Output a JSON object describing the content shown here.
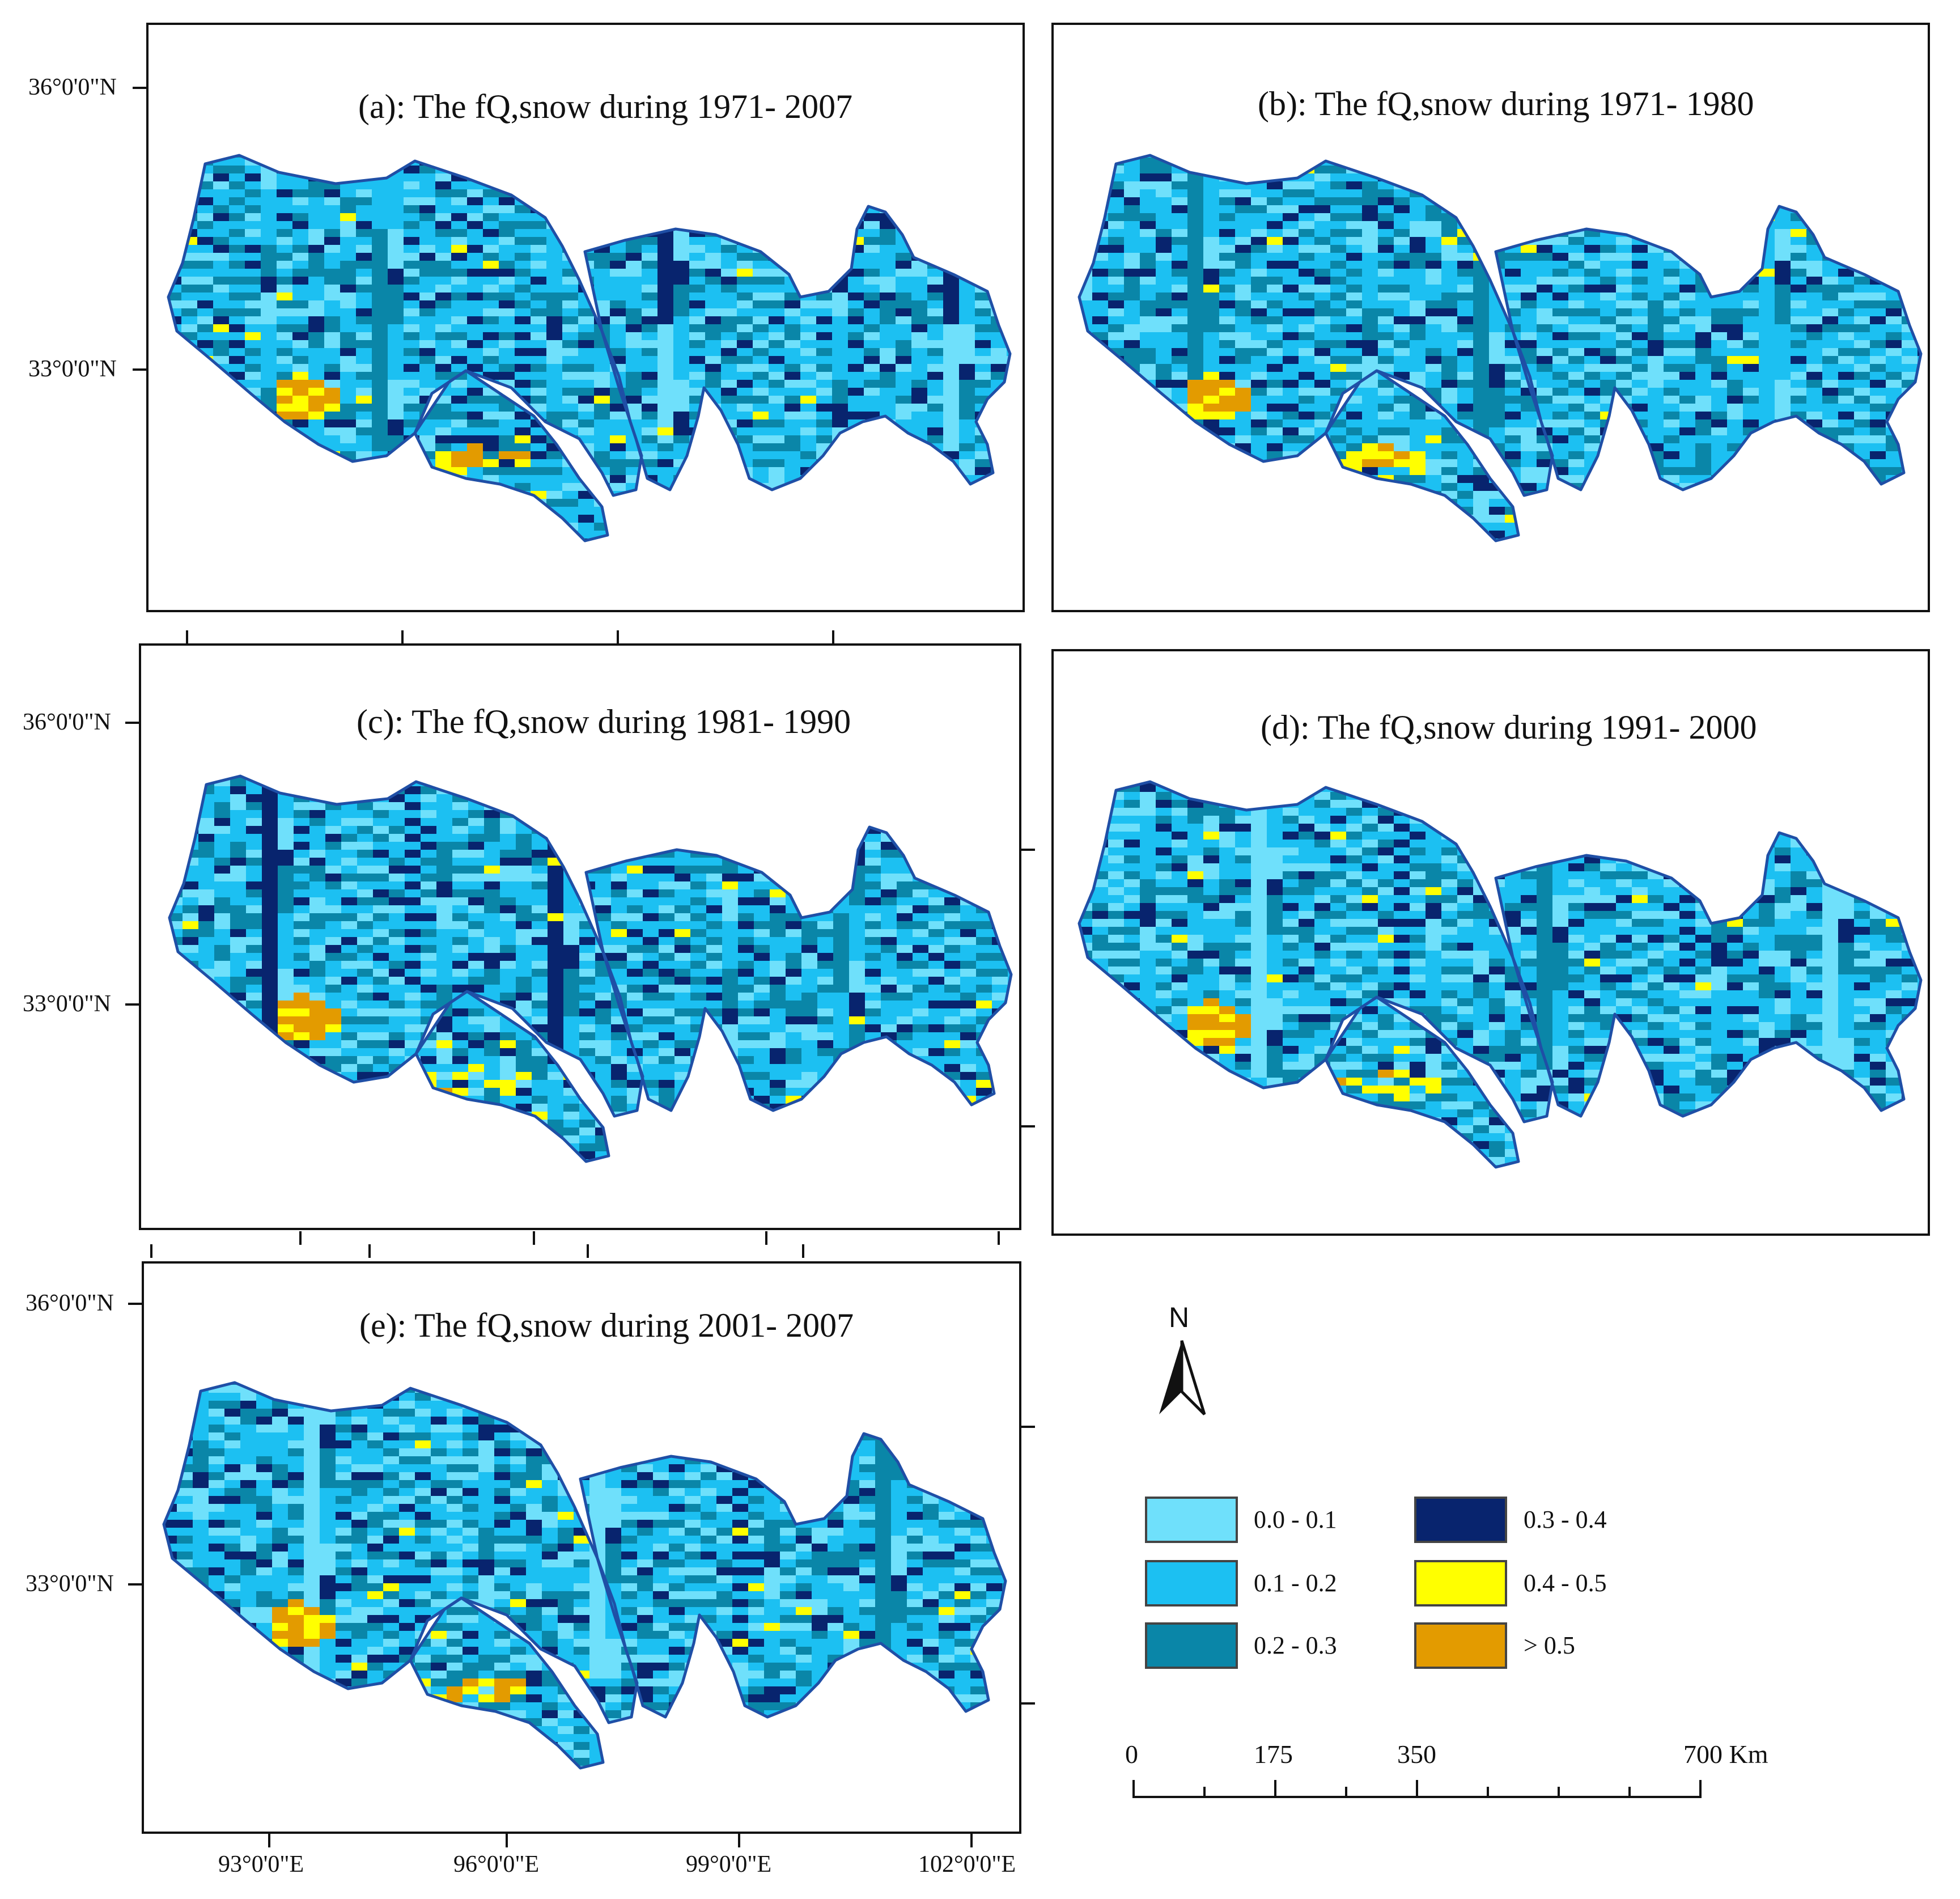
{
  "panels": [
    {
      "id": "a",
      "title": "(a): The  fQ,snow during 1971- 2007"
    },
    {
      "id": "b",
      "title": "(b): The  fQ,snow during 1971- 1980"
    },
    {
      "id": "c",
      "title": "(c): The  fQ,snow during 1981- 1990"
    },
    {
      "id": "d",
      "title": "(d): The  fQ,snow during 1991- 2000"
    },
    {
      "id": "e",
      "title": "(e): The  fQ,snow during 2001- 2007"
    }
  ],
  "lat_labels": {
    "north": "36°0'0\"N",
    "south": "33°0'0\"N"
  },
  "lon_labels": [
    "93°0'0\"E",
    "96°0'0\"E",
    "99°0'0\"E",
    "102°0'0\"E"
  ],
  "legend": [
    {
      "label": "0.0 - 0.1",
      "color": "#6fe0fb"
    },
    {
      "label": "0.1 - 0.2",
      "color": "#1cc0f2"
    },
    {
      "label": "0.2 - 0.3",
      "color": "#0a86a8"
    },
    {
      "label": "0.3 - 0.4",
      "color": "#08246e"
    },
    {
      "label": "0.4 - 0.5",
      "color": "#ffff00"
    },
    {
      "label": "> 0.5",
      "color": "#e39b00"
    }
  ],
  "north_arrow": "N",
  "scale_bar": {
    "labels": [
      "0",
      "175",
      "350",
      "700 Km"
    ]
  },
  "colors": {
    "boundary": "#1f4fa6"
  }
}
